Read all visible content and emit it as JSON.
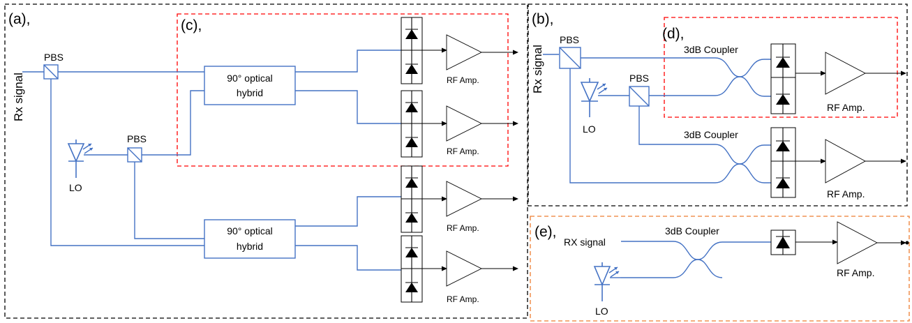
{
  "panels": {
    "a": "(a),",
    "b": "(b),",
    "c": "(c),",
    "d": "(d),",
    "e": "(e),"
  },
  "labels": {
    "rx_signal_a": "Rx signal",
    "rx_signal_b": "Rx signal",
    "rx_signal_e": "RX signal",
    "pbs": "PBS",
    "lo": "LO",
    "hybrid_line1": "90° optical",
    "hybrid_line2": "hybrid",
    "coupler": "3dB Coupler",
    "rf_amp": "RF Amp."
  },
  "colors": {
    "fiber": "#4472C4",
    "frame_black": "#000000",
    "frame_red": "#FF0000",
    "frame_orange": "#ED7D31"
  }
}
